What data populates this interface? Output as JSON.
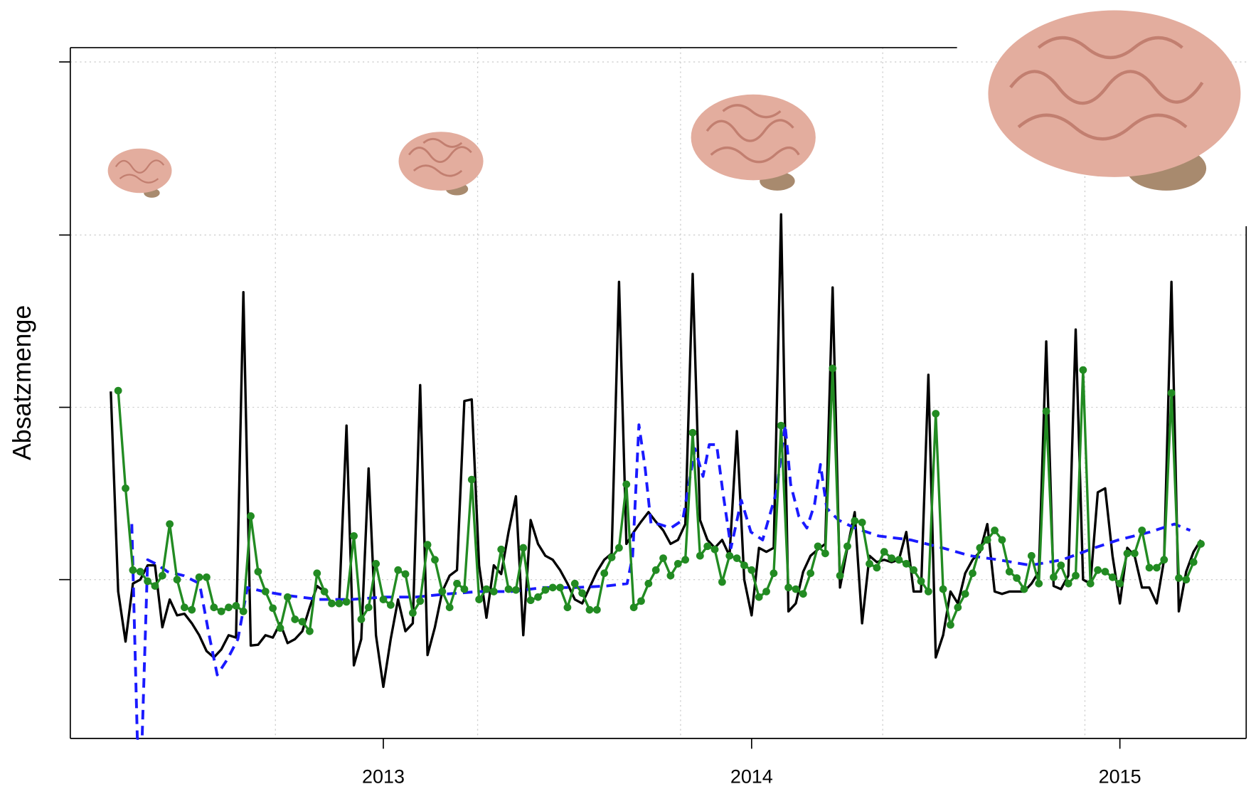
{
  "chart_data": {
    "type": "line",
    "y_label": "Absatzmenge",
    "xlim": [
      2012.15,
      2015.343
    ],
    "xticks": [
      2013,
      2014,
      2015
    ],
    "xgrid": [
      2012.707,
      2013.256,
      2013.807,
      2014.356,
      2014.905
    ],
    "ylim": [
      0,
      870
    ],
    "yticks": [
      200,
      417,
      634,
      852
    ],
    "grid": true,
    "x": [
      2012.26,
      2012.28,
      2012.3,
      2012.32,
      2012.34,
      2012.36,
      2012.38,
      2012.4,
      2012.42,
      2012.44,
      2012.46,
      2012.48,
      2012.5,
      2012.52,
      2012.54,
      2012.56,
      2012.58,
      2012.6,
      2012.62,
      2012.64,
      2012.66,
      2012.68,
      2012.7,
      2012.72,
      2012.74,
      2012.76,
      2012.78,
      2012.8,
      2012.82,
      2012.84,
      2012.86,
      2012.88,
      2012.9,
      2012.92,
      2012.94,
      2012.96,
      2012.98,
      2013,
      2013.02,
      2013.04,
      2013.06,
      2013.08,
      2013.1,
      2013.12,
      2013.14,
      2013.16,
      2013.18,
      2013.2,
      2013.22,
      2013.24,
      2013.26,
      2013.28,
      2013.3,
      2013.32,
      2013.34,
      2013.36,
      2013.38,
      2013.4,
      2013.42,
      2013.44,
      2013.46,
      2013.48,
      2013.5,
      2013.52,
      2013.54,
      2013.56,
      2013.58,
      2013.6,
      2013.62,
      2013.64,
      2013.66,
      2013.68,
      2013.7,
      2013.72,
      2013.74,
      2013.76,
      2013.78,
      2013.8,
      2013.82,
      2013.84,
      2013.86,
      2013.88,
      2013.9,
      2013.92,
      2013.94,
      2013.96,
      2013.98,
      2014,
      2014.02,
      2014.04,
      2014.06,
      2014.08,
      2014.1,
      2014.12,
      2014.14,
      2014.16,
      2014.18,
      2014.2,
      2014.22,
      2014.24,
      2014.26,
      2014.28,
      2014.3,
      2014.32,
      2014.34,
      2014.36,
      2014.38,
      2014.4,
      2014.42,
      2014.44,
      2014.46,
      2014.48,
      2014.5,
      2014.52,
      2014.54,
      2014.56,
      2014.58,
      2014.6,
      2014.62,
      2014.64,
      2014.66,
      2014.68,
      2014.7,
      2014.72,
      2014.74,
      2014.76,
      2014.78,
      2014.8,
      2014.82,
      2014.84,
      2014.86,
      2014.88,
      2014.9,
      2014.92,
      2014.94,
      2014.96,
      2014.98,
      2015,
      2015.02,
      2015.04,
      2015.06,
      2015.08,
      2015.1,
      2015.12,
      2015.14,
      2015.16,
      2015.18,
      2015.2,
      2015.22
    ],
    "series": [
      {
        "color": "#000000",
        "style": "solid",
        "markers": false,
        "values": [
          437,
          185,
          122,
          195,
          200,
          218,
          218,
          140,
          175,
          155,
          157,
          145,
          130,
          110,
          102,
          112,
          130,
          127,
          562,
          117,
          118,
          130,
          127,
          145,
          120,
          125,
          135,
          165,
          192,
          185,
          170,
          170,
          394,
          92,
          125,
          340,
          130,
          65,
          125,
          175,
          135,
          145,
          445,
          105,
          140,
          185,
          205,
          212,
          425,
          427,
          218,
          152,
          218,
          207,
          260,
          305,
          130,
          275,
          245,
          230,
          225,
          212,
          195,
          175,
          170,
          190,
          210,
          225,
          233,
          575,
          245,
          260,
          273,
          285,
          273,
          262,
          245,
          250,
          270,
          585,
          275,
          250,
          240,
          250,
          230,
          387,
          200,
          155,
          240,
          235,
          240,
          660,
          160,
          170,
          210,
          230,
          238,
          245,
          568,
          190,
          240,
          285,
          145,
          230,
          222,
          225,
          222,
          225,
          260,
          185,
          185,
          458,
          102,
          130,
          185,
          170,
          208,
          225,
          235,
          270,
          185,
          182,
          185,
          185,
          185,
          195,
          210,
          500,
          192,
          188,
          205,
          515,
          200,
          195,
          310,
          315,
          230,
          170,
          240,
          230,
          190,
          190,
          170,
          225,
          575,
          160,
          210,
          235,
          250
        ]
      },
      {
        "color": "#1a1aff",
        "style": "dashed",
        "markers": false,
        "x": [
          2012.317,
          2012.332,
          2012.345,
          2012.36,
          2012.382,
          2012.414,
          2012.458,
          2012.501,
          2012.527,
          2012.549,
          2012.577,
          2012.605,
          2012.631,
          2012.675,
          2012.74,
          2012.826,
          2012.913,
          2013,
          2013.087,
          2013.174,
          2013.26,
          2013.347,
          2013.434,
          2013.521,
          2013.607,
          2013.662,
          2013.677,
          2013.694,
          2013.711,
          2013.727,
          2013.748,
          2013.781,
          2013.813,
          2013.846,
          2013.868,
          2013.885,
          2013.905,
          2013.922,
          2013.944,
          2013.972,
          2013.998,
          2014.03,
          2014.067,
          2014.091,
          2014.106,
          2014.128,
          2014.15,
          2014.171,
          2014.187,
          2014.204,
          2014.236,
          2014.28,
          2014.345,
          2014.432,
          2014.518,
          2014.594,
          2014.67,
          2014.757,
          2014.844,
          2014.931,
          2014.996,
          2015.082,
          2015.148,
          2015.191
        ],
        "values": [
          270,
          0,
          0,
          225,
          220,
          210,
          205,
          195,
          130,
          80,
          100,
          125,
          190,
          185,
          180,
          175,
          175,
          178,
          178,
          182,
          185,
          185,
          190,
          190,
          192,
          195,
          230,
          395,
          340,
          270,
          270,
          265,
          275,
          365,
          330,
          370,
          370,
          310,
          240,
          300,
          260,
          250,
          310,
          395,
          320,
          280,
          265,
          295,
          345,
          290,
          275,
          265,
          255,
          250,
          240,
          230,
          225,
          218,
          225,
          240,
          250,
          260,
          270,
          262
        ]
      },
      {
        "color": "#228b22",
        "style": "solid",
        "markers": true,
        "values": [
          null,
          438,
          315,
          212,
          210,
          198,
          192,
          205,
          270,
          200,
          165,
          162,
          203,
          203,
          165,
          160,
          165,
          167,
          160,
          280,
          210,
          185,
          164,
          139,
          178,
          150,
          147,
          135,
          208,
          185,
          170,
          170,
          172,
          255,
          150,
          165,
          220,
          175,
          168,
          212,
          207,
          158,
          173,
          244,
          225,
          185,
          165,
          195,
          188,
          326,
          175,
          188,
          185,
          238,
          188,
          187,
          240,
          174,
          178,
          187,
          190,
          190,
          165,
          195,
          183,
          162,
          162,
          208,
          228,
          240,
          320,
          165,
          173,
          195,
          212,
          227,
          205,
          220,
          225,
          385,
          230,
          242,
          238,
          197,
          230,
          227,
          218,
          212,
          178,
          185,
          208,
          394,
          190,
          188,
          182,
          208,
          242,
          233,
          466,
          205,
          242,
          274,
          272,
          220,
          215,
          235,
          227,
          225,
          220,
          212,
          198,
          185,
          409,
          188,
          143,
          165,
          182,
          208,
          240,
          250,
          262,
          250,
          210,
          202,
          188,
          230,
          195,
          412,
          203,
          218,
          195,
          205,
          464,
          195,
          212,
          210,
          203,
          195,
          233,
          233,
          262,
          215,
          215,
          225,
          435,
          202,
          200,
          222,
          245
        ]
      }
    ]
  }
}
